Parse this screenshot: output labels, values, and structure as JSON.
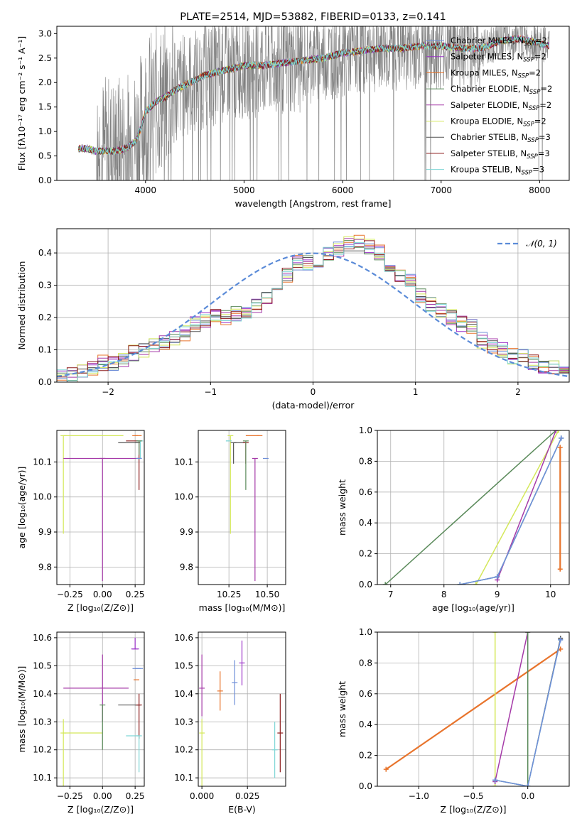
{
  "colors": {
    "chabrier_miles": "#6f8fd8",
    "salpeter_miles": "#9a32c8",
    "kroupa_miles": "#e8742c",
    "chabrier_elodie": "#5a8a5a",
    "salpeter_elodie": "#a53aa8",
    "kroupa_elodie": "#d4e85a",
    "chabrier_stelib": "#555555",
    "salpeter_stelib": "#8b1a1a",
    "kroupa_stelib": "#7fd6d6",
    "observed": "#808080",
    "normal": "#5b8bd8",
    "grid": "#b0b0b0"
  },
  "chart_data": [
    {
      "id": "spectrum",
      "type": "line",
      "title": "PLATE=2514, MJD=53882, FIBERID=0133, z=0.141",
      "xlabel": "wavelength [Angstrom, rest frame]",
      "ylabel": "Flux [fλ10⁻¹⁷ erg cm⁻² s⁻¹ A⁻¹]",
      "xlim": [
        3100,
        8300
      ],
      "ylim": [
        0,
        3.15
      ],
      "xticks": [
        4000,
        5000,
        6000,
        7000,
        8000
      ],
      "yticks": [
        0.0,
        0.5,
        1.0,
        1.5,
        2.0,
        2.5,
        3.0
      ],
      "grid": false,
      "legend_position": "top-right",
      "series": [
        {
          "name": "Chabrier MILES, N_SSP=2",
          "key": "chabrier_miles"
        },
        {
          "name": "Salpeter MILES, N_SSP=2",
          "key": "salpeter_miles"
        },
        {
          "name": "Kroupa MILES, N_SSP=2",
          "key": "kroupa_miles"
        },
        {
          "name": "Chabrier ELODIE, N_SSP=2",
          "key": "chabrier_elodie"
        },
        {
          "name": "Salpeter ELODIE, N_SSP=2",
          "key": "salpeter_elodie"
        },
        {
          "name": "Kroupa ELODIE, N_SSP=2",
          "key": "kroupa_elodie"
        },
        {
          "name": "Chabrier STELIB, N_SSP=3",
          "key": "chabrier_stelib"
        },
        {
          "name": "Salpeter STELIB, N_SSP=3",
          "key": "salpeter_stelib"
        },
        {
          "name": "Kroupa STELIB, N_SSP=3",
          "key": "kroupa_stelib"
        }
      ],
      "continuum": {
        "x": [
          3320,
          3400,
          3500,
          3600,
          3700,
          3800,
          3900,
          3950,
          4000,
          4100,
          4200,
          4300,
          4400,
          4500,
          4600,
          4700,
          4800,
          4900,
          5000,
          5200,
          5400,
          5600,
          5800,
          6000,
          6200,
          6400,
          6600,
          6800,
          7000,
          7200,
          7400,
          7600,
          7800,
          8000,
          8100
        ],
        "y": [
          0.65,
          0.65,
          0.6,
          0.6,
          0.6,
          0.65,
          0.8,
          1.05,
          1.4,
          1.6,
          1.7,
          1.85,
          1.95,
          2.05,
          2.15,
          2.2,
          2.25,
          2.3,
          2.35,
          2.35,
          2.4,
          2.45,
          2.5,
          2.6,
          2.65,
          2.7,
          2.7,
          2.75,
          2.75,
          2.7,
          2.7,
          2.85,
          2.9,
          2.8,
          2.75
        ]
      }
    },
    {
      "id": "residuals",
      "type": "histogram",
      "xlabel": "(data-model)/error",
      "ylabel": "Normed distribution",
      "xlim": [
        -2.5,
        2.5
      ],
      "ylim": [
        0,
        0.475
      ],
      "xticks": [
        -2,
        -1,
        0,
        1,
        2
      ],
      "yticks": [
        0.0,
        0.1,
        0.2,
        0.3,
        0.4
      ],
      "grid": true,
      "legend_position": "top-right",
      "legend": "𝒩(0, 1)",
      "bins": [
        -2.5,
        -2.4,
        -2.3,
        -2.2,
        -2.1,
        -2.0,
        -1.9,
        -1.8,
        -1.7,
        -1.6,
        -1.5,
        -1.4,
        -1.3,
        -1.2,
        -1.1,
        -1.0,
        -0.9,
        -0.8,
        -0.7,
        -0.6,
        -0.5,
        -0.4,
        -0.3,
        -0.2,
        -0.1,
        0.0,
        0.1,
        0.2,
        0.3,
        0.4,
        0.5,
        0.6,
        0.7,
        0.8,
        0.9,
        1.0,
        1.1,
        1.2,
        1.3,
        1.4,
        1.5,
        1.6,
        1.7,
        1.8,
        1.9,
        2.0,
        2.1,
        2.2,
        2.3,
        2.4
      ],
      "mean_hist": [
        0.015,
        0.02,
        0.03,
        0.04,
        0.06,
        0.06,
        0.07,
        0.09,
        0.1,
        0.11,
        0.12,
        0.14,
        0.15,
        0.18,
        0.19,
        0.2,
        0.2,
        0.21,
        0.22,
        0.24,
        0.26,
        0.29,
        0.33,
        0.37,
        0.37,
        0.38,
        0.4,
        0.41,
        0.43,
        0.43,
        0.42,
        0.4,
        0.36,
        0.33,
        0.31,
        0.27,
        0.24,
        0.22,
        0.2,
        0.18,
        0.17,
        0.13,
        0.11,
        0.1,
        0.08,
        0.08,
        0.06,
        0.05,
        0.05,
        0.03
      ]
    },
    {
      "id": "age_vs_Z",
      "type": "scatter",
      "xlabel": "Z [log₁₀(Z/Z⊙)]",
      "ylabel": "age  [log₁₀(age/yr)]",
      "xlim": [
        -0.35,
        0.32
      ],
      "ylim": [
        9.75,
        10.19
      ],
      "xticks": [
        -0.25,
        0.0,
        0.25
      ],
      "yticks": [
        9.8,
        9.9,
        10.0,
        10.1
      ],
      "grid": true,
      "points": [
        {
          "key": "kroupa_elodie",
          "x": -0.3,
          "y": 10.175,
          "xerr": [
            0.0,
            0.46
          ],
          "yerr": [
            0.28,
            0.0
          ]
        },
        {
          "key": "salpeter_elodie",
          "x": 0.0,
          "y": 10.11,
          "xerr": [
            0.3,
            0.3
          ],
          "yerr": [
            0.35,
            0.0
          ]
        },
        {
          "key": "kroupa_miles",
          "x": 0.25,
          "y": 10.175,
          "xerr": [
            0.0,
            0.05
          ],
          "yerr": [
            0.0,
            0.0
          ]
        },
        {
          "key": "chabrier_stelib",
          "x": 0.27,
          "y": 10.155,
          "xerr": [
            0.15,
            0.02
          ],
          "yerr": [
            0.0,
            0.0
          ]
        },
        {
          "key": "salpeter_stelib",
          "x": 0.28,
          "y": 10.16,
          "xerr": [
            0.1,
            0.0
          ],
          "yerr": [
            0.14,
            0.0
          ]
        },
        {
          "key": "kroupa_stelib",
          "x": 0.29,
          "y": 10.16,
          "xerr": [
            0.0,
            0.0
          ],
          "yerr": [
            0.05,
            0.0
          ]
        },
        {
          "key": "chabrier_miles",
          "x": 0.28,
          "y": 10.11,
          "xerr": [
            0.02,
            0.0
          ],
          "yerr": [
            0.0,
            0.0
          ]
        },
        {
          "key": "chabrier_elodie",
          "x": 0.28,
          "y": 10.16,
          "xerr": [
            0.0,
            0.0
          ],
          "yerr": [
            0.04,
            0.0
          ]
        }
      ]
    },
    {
      "id": "age_vs_mass",
      "type": "scatter",
      "xlabel": "mass [log₁₀(M/M⊙)]",
      "ylabel": "",
      "xlim": [
        10.05,
        10.62
      ],
      "ylim": [
        9.75,
        10.19
      ],
      "xticks": [
        10.25,
        10.5
      ],
      "yticks": [
        9.8,
        9.9,
        10.0,
        10.1
      ],
      "grid": true,
      "points": [
        {
          "key": "kroupa_elodie",
          "x": 10.26,
          "y": 10.175,
          "xerr": [
            0.0,
            0.0
          ],
          "yerr": [
            0.28,
            0.0
          ]
        },
        {
          "key": "salpeter_elodie",
          "x": 10.42,
          "y": 10.11,
          "xerr": [
            0.0,
            0.0
          ],
          "yerr": [
            0.35,
            0.0
          ]
        },
        {
          "key": "kroupa_miles",
          "x": 10.45,
          "y": 10.175,
          "xerr": [
            0.09,
            0.0
          ],
          "yerr": [
            0.0,
            0.0
          ]
        },
        {
          "key": "chabrier_stelib",
          "x": 10.28,
          "y": 10.155,
          "xerr": [
            0.0,
            0.08
          ],
          "yerr": [
            0.06,
            0.0
          ]
        },
        {
          "key": "salpeter_stelib",
          "x": 10.36,
          "y": 10.155,
          "xerr": [
            0.0,
            0.0
          ],
          "yerr": [
            0.06,
            0.0
          ]
        },
        {
          "key": "kroupa_stelib",
          "x": 10.25,
          "y": 10.16,
          "xerr": [
            0.02,
            0.0
          ],
          "yerr": [
            0.0,
            0.0
          ]
        },
        {
          "key": "chabrier_miles",
          "x": 10.49,
          "y": 10.11,
          "xerr": [
            0.0,
            0.0
          ],
          "yerr": [
            0.0,
            0.0
          ]
        },
        {
          "key": "chabrier_elodie",
          "x": 10.36,
          "y": 10.16,
          "xerr": [
            0.0,
            0.0
          ],
          "yerr": [
            0.14,
            0.0
          ]
        }
      ]
    },
    {
      "id": "mass_weight_vs_age",
      "type": "line",
      "xlabel": "age  [log₁₀(age/yr)]",
      "ylabel": "mass weight",
      "xlim": [
        6.75,
        10.35
      ],
      "ylim": [
        0,
        1
      ],
      "xticks": [
        7,
        8,
        9,
        10
      ],
      "yticks": [
        0.0,
        0.2,
        0.4,
        0.6,
        0.8,
        1.0
      ],
      "grid": true,
      "series": [
        {
          "key": "chabrier_elodie",
          "x": [
            6.9,
            10.1
          ],
          "y": [
            0.0,
            1.0
          ]
        },
        {
          "key": "kroupa_elodie",
          "x": [
            8.6,
            10.15
          ],
          "y": [
            0.0,
            1.0
          ]
        },
        {
          "key": "salpeter_elodie",
          "x": [
            9.0,
            10.1
          ],
          "y": [
            0.03,
            1.0
          ]
        },
        {
          "key": "chabrier_stelib",
          "x": [
            8.3,
            9.0,
            10.2
          ],
          "y": [
            0.0,
            0.05,
            0.95
          ]
        },
        {
          "key": "kroupa_stelib",
          "x": [
            8.3,
            9.0,
            10.2
          ],
          "y": [
            0.0,
            0.05,
            0.95
          ]
        },
        {
          "key": "chabrier_miles",
          "x": [
            8.3,
            9.0,
            10.2
          ],
          "y": [
            0.0,
            0.05,
            0.95
          ]
        },
        {
          "key": "kroupa_miles",
          "x": [
            10.18,
            10.18
          ],
          "y": [
            0.1,
            0.89
          ]
        }
      ]
    },
    {
      "id": "mass_vs_Z",
      "type": "scatter",
      "xlabel": "Z [log₁₀(Z/Z⊙)]",
      "ylabel": "mass [log₁₀(M/M⊙)]",
      "xlim": [
        -0.35,
        0.32
      ],
      "ylim": [
        10.07,
        10.62
      ],
      "xticks": [
        -0.25,
        0.0,
        0.25
      ],
      "yticks": [
        10.1,
        10.2,
        10.3,
        10.4,
        10.5,
        10.6
      ],
      "grid": true,
      "points": [
        {
          "key": "kroupa_elodie",
          "x": -0.3,
          "y": 10.26,
          "xerr": [
            0.0,
            0.3
          ],
          "yerr": [
            0.19,
            0.05
          ]
        },
        {
          "key": "salpeter_elodie",
          "x": 0.0,
          "y": 10.42,
          "xerr": [
            0.3,
            0.2
          ],
          "yerr": [
            0.12,
            0.12
          ]
        },
        {
          "key": "chabrier_elodie",
          "x": 0.0,
          "y": 10.36,
          "xerr": [
            0.0,
            0.0
          ],
          "yerr": [
            0.16,
            0.0
          ]
        },
        {
          "key": "chabrier_stelib",
          "x": 0.27,
          "y": 10.36,
          "xerr": [
            0.15,
            0.02
          ],
          "yerr": [
            0.0,
            0.0
          ]
        },
        {
          "key": "salpeter_stelib",
          "x": 0.28,
          "y": 10.36,
          "xerr": [
            0.0,
            0.0
          ],
          "yerr": [
            0.12,
            0.04
          ]
        },
        {
          "key": "kroupa_stelib",
          "x": 0.28,
          "y": 10.25,
          "xerr": [
            0.1,
            0.0
          ],
          "yerr": [
            0.13,
            0.0
          ]
        },
        {
          "key": "chabrier_miles",
          "x": 0.27,
          "y": 10.49,
          "xerr": [
            0.04,
            0.04
          ],
          "yerr": [
            0.0,
            0.0
          ]
        },
        {
          "key": "kroupa_miles",
          "x": 0.26,
          "y": 10.45,
          "xerr": [
            0.0,
            0.0
          ],
          "yerr": [
            0.0,
            0.0
          ]
        },
        {
          "key": "salpeter_miles",
          "x": 0.25,
          "y": 10.56,
          "xerr": [
            0.03,
            0.03
          ],
          "yerr": [
            0.0,
            0.04
          ]
        }
      ]
    },
    {
      "id": "mass_vs_EBV",
      "type": "scatter",
      "xlabel": "E(B-V)",
      "ylabel": "",
      "xlim": [
        -0.002,
        0.046
      ],
      "ylim": [
        10.07,
        10.62
      ],
      "xticks": [
        0.0,
        0.025
      ],
      "yticks": [
        10.1,
        10.2,
        10.3,
        10.4,
        10.5,
        10.6
      ],
      "grid": true,
      "points": [
        {
          "key": "kroupa_elodie",
          "x": 0.0,
          "y": 10.26,
          "xerr": [
            0.0,
            0.0
          ],
          "yerr": [
            0.19,
            0.05
          ]
        },
        {
          "key": "salpeter_elodie",
          "x": 0.0,
          "y": 10.42,
          "xerr": [
            0.0,
            0.0
          ],
          "yerr": [
            0.1,
            0.12
          ]
        },
        {
          "key": "kroupa_miles",
          "x": 0.01,
          "y": 10.41,
          "xerr": [
            0.0,
            0.0
          ],
          "yerr": [
            0.07,
            0.07
          ]
        },
        {
          "key": "chabrier_miles",
          "x": 0.018,
          "y": 10.44,
          "xerr": [
            0.0,
            0.0
          ],
          "yerr": [
            0.08,
            0.08
          ]
        },
        {
          "key": "salpeter_miles",
          "x": 0.022,
          "y": 10.51,
          "xerr": [
            0.0,
            0.0
          ],
          "yerr": [
            0.08,
            0.08
          ]
        },
        {
          "key": "kroupa_stelib",
          "x": 0.04,
          "y": 10.2,
          "xerr": [
            0.0,
            0.0
          ],
          "yerr": [
            0.1,
            0.1
          ]
        },
        {
          "key": "salpeter_stelib",
          "x": 0.043,
          "y": 10.26,
          "xerr": [
            0.0,
            0.0
          ],
          "yerr": [
            0.14,
            0.14
          ]
        }
      ]
    },
    {
      "id": "mass_weight_vs_Z",
      "type": "line",
      "xlabel": "Z [log₁₀(Z/Z⊙)]",
      "ylabel": "mass weight",
      "xlim": [
        -1.38,
        0.38
      ],
      "ylim": [
        0,
        1
      ],
      "xticks": [
        -1.0,
        -0.5,
        0.0
      ],
      "yticks": [
        0.0,
        0.2,
        0.4,
        0.6,
        0.8,
        1.0
      ],
      "grid": true,
      "series": [
        {
          "key": "kroupa_miles",
          "x": [
            -1.3,
            0.3
          ],
          "y": [
            0.11,
            0.89
          ]
        },
        {
          "key": "kroupa_elodie",
          "x": [
            -0.3,
            -0.3
          ],
          "y": [
            0.0,
            1.0
          ]
        },
        {
          "key": "salpeter_elodie",
          "x": [
            -0.3,
            0.0
          ],
          "y": [
            0.03,
            1.0
          ]
        },
        {
          "key": "chabrier_elodie",
          "x": [
            0.0,
            0.0
          ],
          "y": [
            0.0,
            1.0
          ]
        },
        {
          "key": "chabrier_stelib",
          "x": [
            -0.3,
            0.0,
            0.3
          ],
          "y": [
            0.04,
            0.0,
            0.96
          ]
        },
        {
          "key": "kroupa_stelib",
          "x": [
            -0.3,
            0.0,
            0.3
          ],
          "y": [
            0.04,
            0.0,
            0.95
          ]
        },
        {
          "key": "chabrier_miles",
          "x": [
            -0.3,
            0.0,
            0.3
          ],
          "y": [
            0.04,
            0.0,
            0.95
          ]
        }
      ]
    }
  ]
}
